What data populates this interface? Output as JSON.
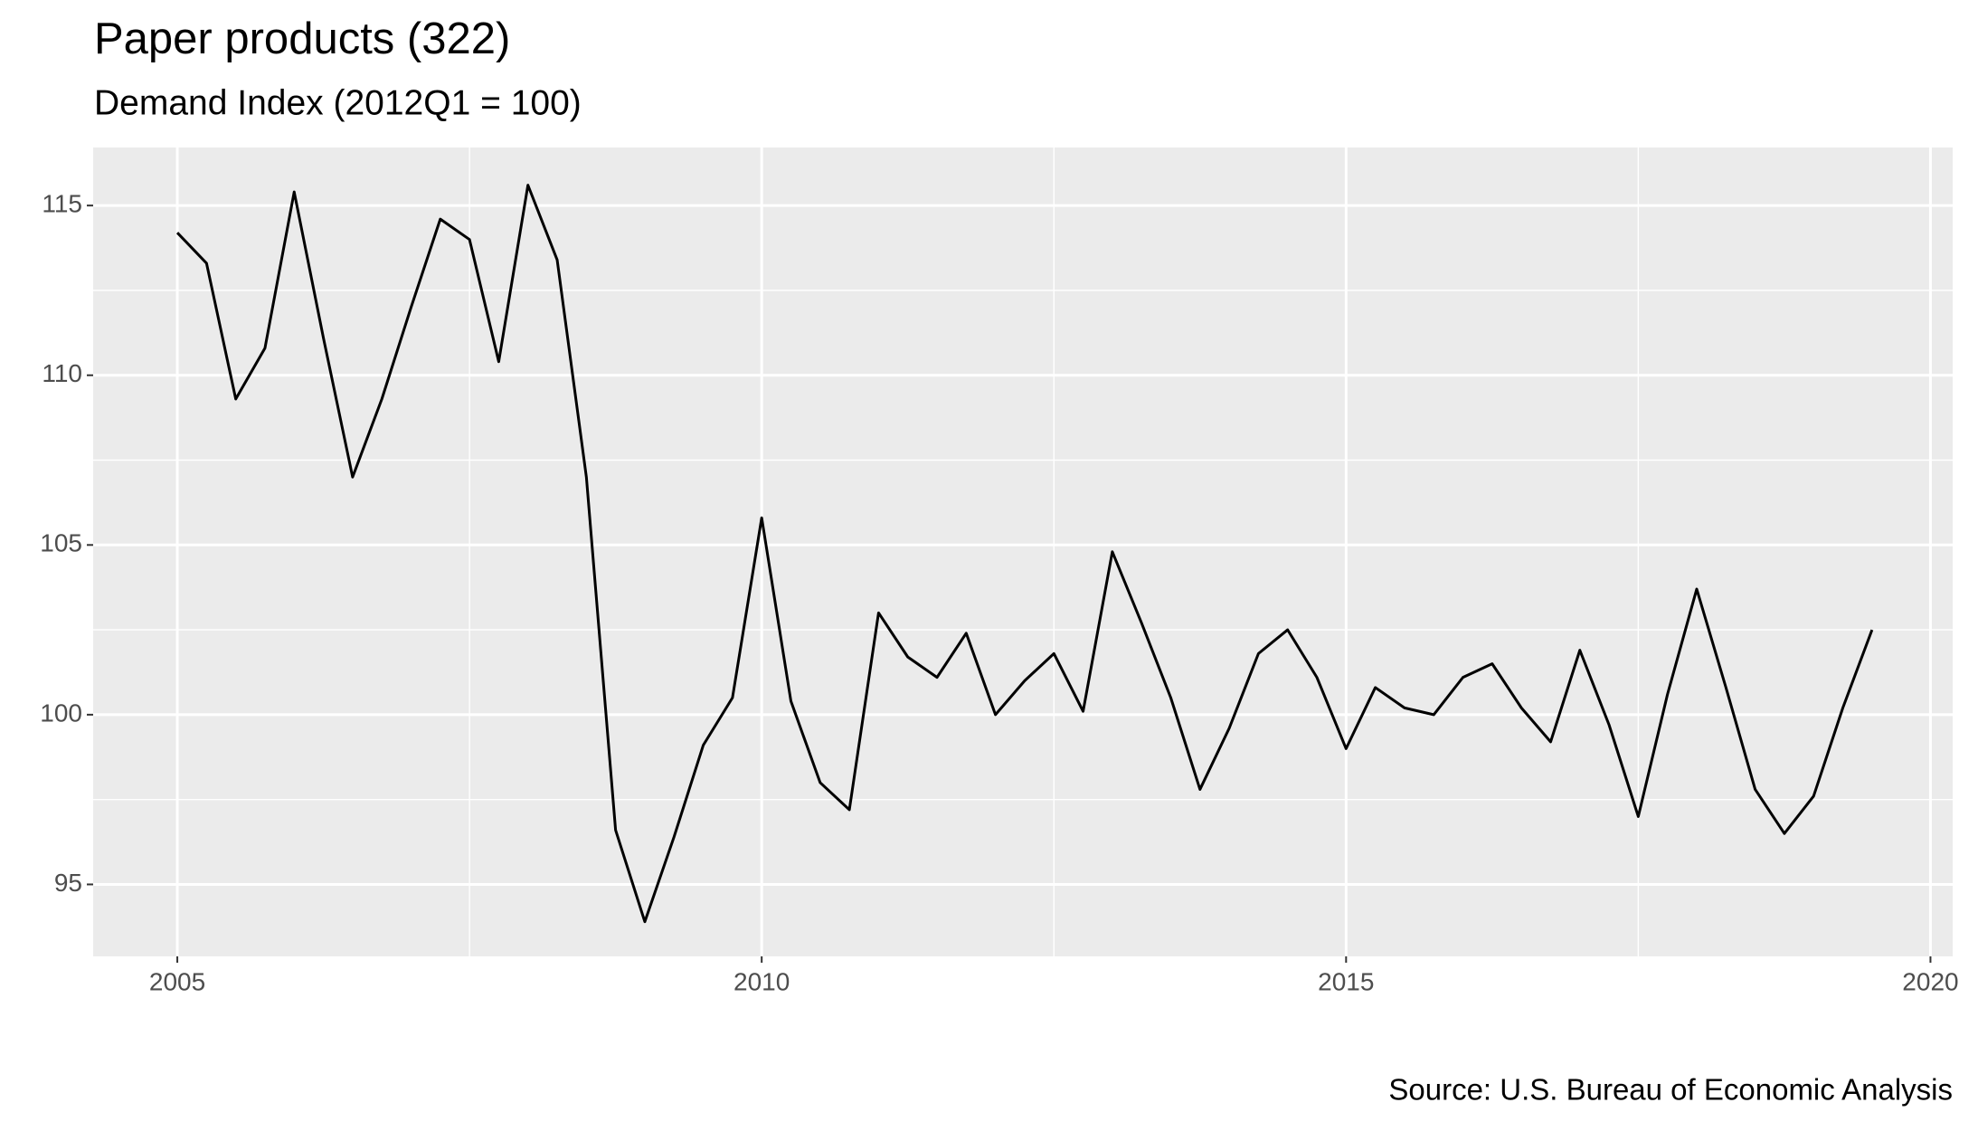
{
  "chart_data": {
    "type": "line",
    "title": "Paper products (322)",
    "subtitle": "Demand Index (2012Q1 = 100)",
    "caption": "Source: U.S. Bureau of Economic Analysis",
    "x": [
      2005,
      2005.25,
      2005.5,
      2005.75,
      2006,
      2006.25,
      2006.5,
      2006.75,
      2007,
      2007.25,
      2007.5,
      2007.75,
      2008,
      2008.25,
      2008.5,
      2008.75,
      2009,
      2009.25,
      2009.5,
      2009.75,
      2010,
      2010.25,
      2010.5,
      2010.75,
      2011,
      2011.25,
      2011.5,
      2011.75,
      2012,
      2012.25,
      2012.5,
      2012.75,
      2013,
      2013.25,
      2013.5,
      2013.75,
      2014,
      2014.25,
      2014.5,
      2014.75,
      2015,
      2015.25,
      2015.5,
      2015.75,
      2016,
      2016.25,
      2016.5,
      2016.75,
      2017,
      2017.25,
      2017.5,
      2017.75,
      2018,
      2018.25,
      2018.5,
      2018.75,
      2019,
      2019.25,
      2019.5
    ],
    "series": [
      {
        "name": "Demand Index",
        "color": "#000000",
        "values": [
          114.2,
          113.3,
          109.3,
          110.8,
          115.4,
          111.1,
          107.0,
          109.3,
          112.0,
          114.6,
          114.0,
          110.4,
          115.6,
          113.4,
          107.0,
          96.6,
          93.9,
          96.4,
          99.1,
          100.5,
          105.8,
          100.4,
          98.0,
          97.2,
          103.0,
          101.7,
          101.1,
          102.4,
          100.0,
          101.0,
          101.8,
          100.1,
          104.8,
          102.7,
          100.5,
          97.8,
          99.6,
          101.8,
          102.5,
          101.1,
          99.0,
          100.8,
          100.2,
          100.0,
          101.1,
          101.5,
          100.2,
          99.2,
          101.9,
          99.7,
          97.0,
          100.6,
          103.7,
          100.8,
          97.8,
          96.5,
          97.6,
          100.2,
          102.5
        ]
      }
    ],
    "xlim": [
      2004.28,
      2020.19
    ],
    "xticks": [
      2005,
      2010,
      2015,
      2020
    ],
    "ylim": [
      92.88,
      116.71
    ],
    "yticks": [
      95,
      100,
      105,
      110,
      115
    ],
    "grid": true,
    "panel_color": "#ebebeb"
  }
}
